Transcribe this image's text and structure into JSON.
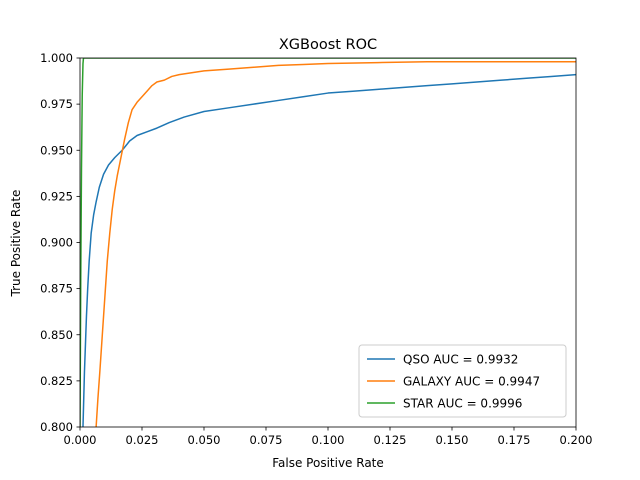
{
  "chart_data": {
    "type": "line",
    "title": "XGBoost ROC",
    "xlabel": "False Positive Rate",
    "ylabel": "True Positive Rate",
    "xlim": [
      0.0,
      0.2
    ],
    "ylim": [
      0.8,
      1.0
    ],
    "xticks": [
      "0.000",
      "0.025",
      "0.050",
      "0.075",
      "0.100",
      "0.125",
      "0.150",
      "0.175",
      "0.200"
    ],
    "yticks": [
      "0.800",
      "0.825",
      "0.850",
      "0.875",
      "0.900",
      "0.925",
      "0.950",
      "0.975",
      "1.000"
    ],
    "grid": false,
    "legend_position": "lower-right",
    "series": [
      {
        "name": "QSO AUC = 0.9932",
        "color": "#1f77b4",
        "x": [
          0.0012,
          0.0015,
          0.0018,
          0.0022,
          0.0026,
          0.0031,
          0.0037,
          0.0045,
          0.0055,
          0.0065,
          0.0078,
          0.0095,
          0.0115,
          0.014,
          0.017,
          0.02,
          0.023,
          0.027,
          0.031,
          0.036,
          0.042,
          0.05,
          0.06,
          0.07,
          0.08,
          0.09,
          0.1,
          0.11,
          0.12,
          0.13,
          0.14,
          0.15,
          0.16,
          0.17,
          0.18,
          0.19,
          0.2
        ],
        "y": [
          0.8,
          0.815,
          0.83,
          0.845,
          0.86,
          0.875,
          0.89,
          0.905,
          0.915,
          0.922,
          0.93,
          0.937,
          0.942,
          0.946,
          0.95,
          0.955,
          0.958,
          0.96,
          0.962,
          0.965,
          0.968,
          0.971,
          0.973,
          0.975,
          0.977,
          0.979,
          0.981,
          0.982,
          0.983,
          0.984,
          0.985,
          0.986,
          0.987,
          0.988,
          0.989,
          0.99,
          0.991
        ]
      },
      {
        "name": "GALAXY AUC = 0.9947",
        "color": "#ff7f0e",
        "x": [
          0.0065,
          0.0072,
          0.008,
          0.009,
          0.01,
          0.011,
          0.012,
          0.013,
          0.014,
          0.015,
          0.0165,
          0.018,
          0.0195,
          0.021,
          0.023,
          0.025,
          0.027,
          0.029,
          0.031,
          0.034,
          0.037,
          0.04,
          0.045,
          0.05,
          0.06,
          0.07,
          0.08,
          0.09,
          0.1,
          0.12,
          0.14,
          0.16,
          0.18,
          0.2
        ],
        "y": [
          0.8,
          0.815,
          0.83,
          0.85,
          0.87,
          0.89,
          0.905,
          0.918,
          0.928,
          0.936,
          0.946,
          0.956,
          0.965,
          0.972,
          0.976,
          0.979,
          0.982,
          0.985,
          0.987,
          0.988,
          0.99,
          0.991,
          0.992,
          0.993,
          0.994,
          0.995,
          0.996,
          0.9965,
          0.997,
          0.9975,
          0.998,
          0.998,
          0.998,
          0.998
        ]
      },
      {
        "name": "STAR AUC = 0.9996",
        "color": "#2ca02c",
        "x": [
          0.0,
          0.0003,
          0.0006,
          0.0009,
          0.0012,
          0.0014,
          0.05,
          0.2
        ],
        "y": [
          0.8,
          0.88,
          0.94,
          0.98,
          0.997,
          1.0,
          1.0,
          1.0
        ]
      }
    ]
  }
}
